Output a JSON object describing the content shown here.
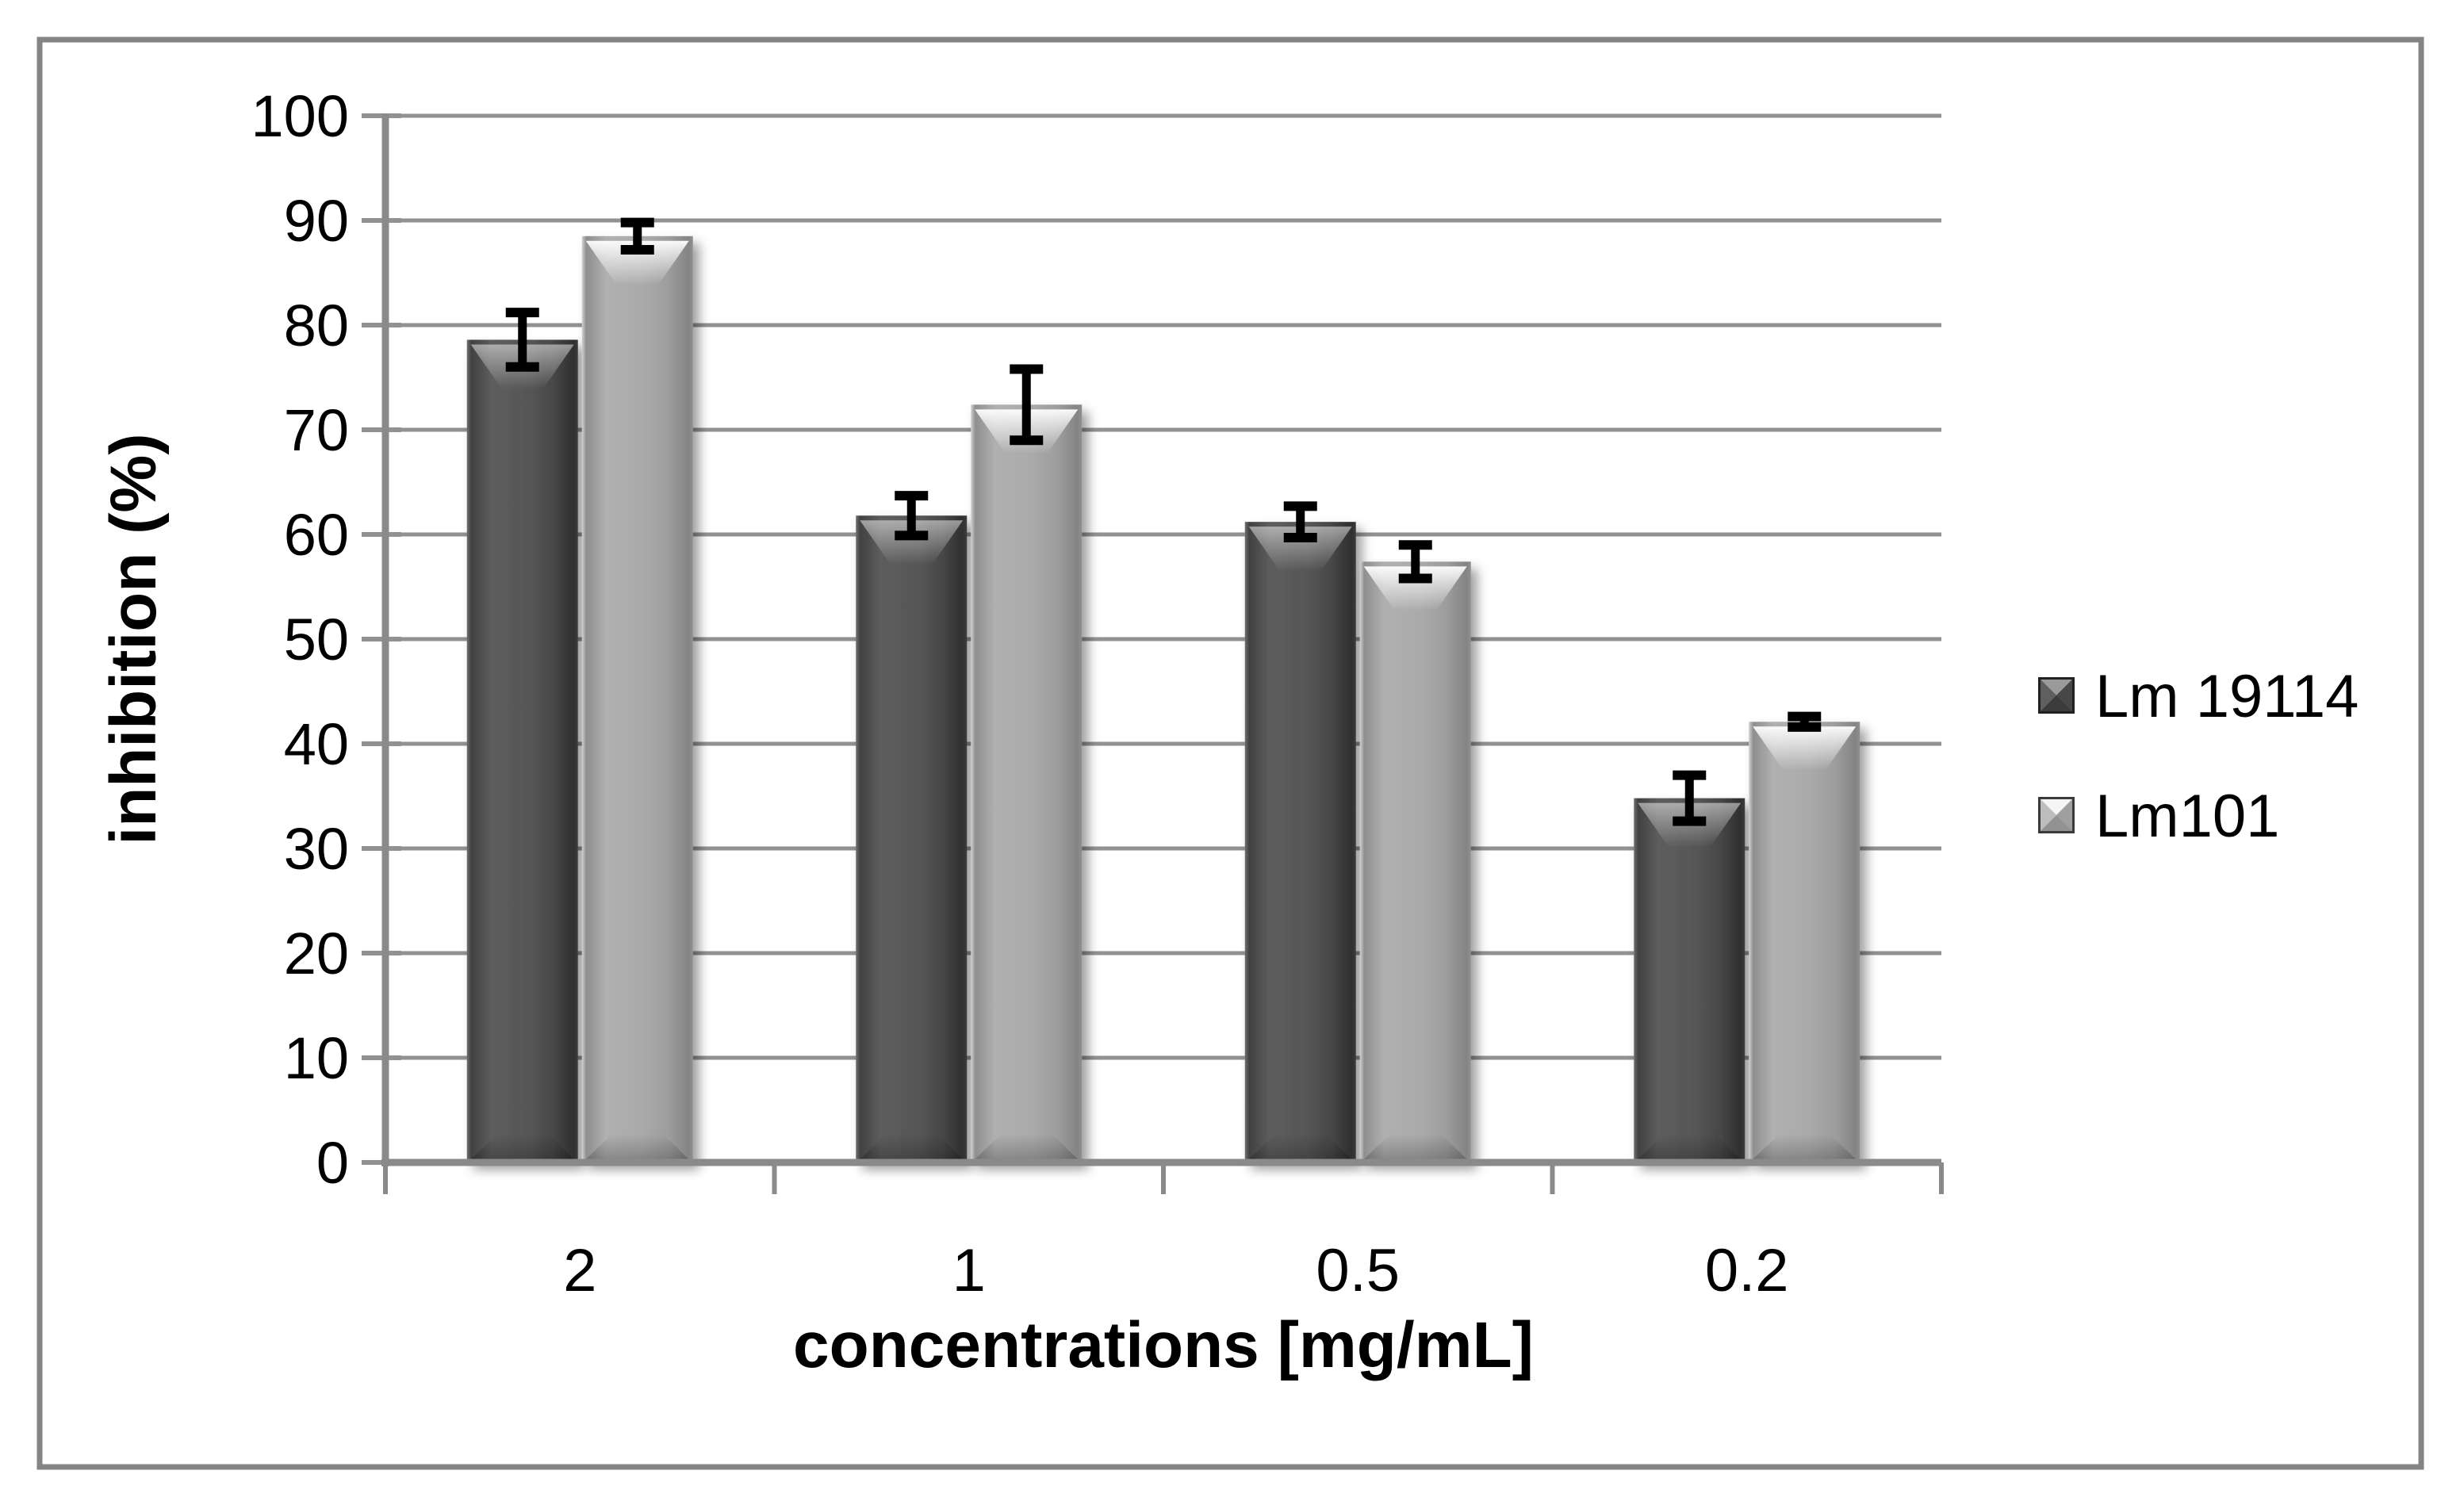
{
  "chart_data": {
    "type": "bar",
    "title": "",
    "xlabel": "concentrations [mg/mL]",
    "ylabel": "inhibition (%)",
    "categories": [
      "2",
      "1",
      "0.5",
      "0.2"
    ],
    "series": [
      {
        "name": "Lm 19114",
        "values": [
          78.6,
          61.8,
          61.2,
          34.8
        ],
        "errors": [
          2.6,
          1.9,
          1.5,
          2.2
        ],
        "color": "#4f4f4f"
      },
      {
        "name": "Lm101",
        "values": [
          88.5,
          72.4,
          57.4,
          42.1
        ],
        "errors": [
          1.3,
          3.4,
          1.6,
          0.5
        ],
        "color": "#a8a8a8"
      }
    ],
    "ylim": [
      0,
      100
    ],
    "ytick_step": 10,
    "yticks": [
      0,
      10,
      20,
      30,
      40,
      50,
      60,
      70,
      80,
      90,
      100
    ],
    "grid": true,
    "legend_position": "right",
    "error_bars": true
  },
  "style": {
    "background": "#ffffff",
    "border_color": "#848484",
    "grid_color": "#919191",
    "axis_color": "#8a8a8a",
    "text_color": "#000000",
    "error_bar_color": "#000000",
    "legend_marker_dark": {
      "border": "#202020",
      "base": "#4a4a4a",
      "top": "#9a9a9a",
      "left": "#5f5f5f",
      "right": "#474747",
      "bottom": "#3b3b3b"
    },
    "legend_marker_light": {
      "border": "#3a3a3a",
      "base": "#aaaaaa",
      "top": "#f5f5f5",
      "left": "#bdbdbd",
      "right": "#9f9f9f",
      "bottom": "#929292"
    }
  }
}
